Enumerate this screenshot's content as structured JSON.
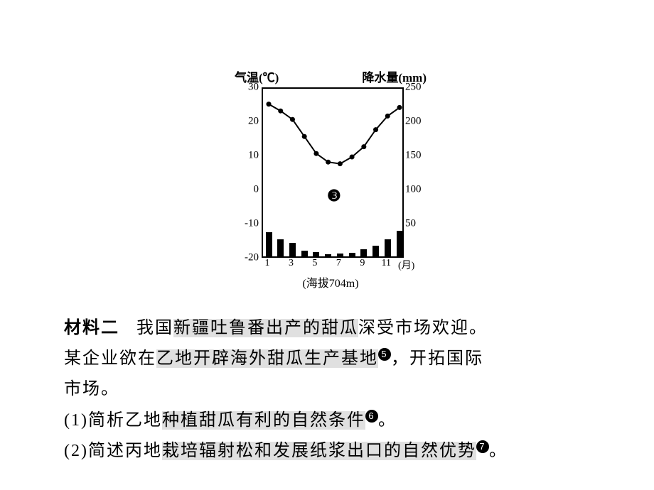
{
  "chart": {
    "title_left": "气温(℃)",
    "title_right": "降水量(mm)",
    "caption": "(海拔704m)",
    "center_mark": "❸",
    "yaxis_left": {
      "min": -20,
      "max": 30,
      "step": 10,
      "ticks": [
        30,
        20,
        10,
        0,
        -10,
        -20
      ]
    },
    "yaxis_right": {
      "min": 0,
      "max": 250,
      "step": 50,
      "ticks": [
        250,
        200,
        150,
        100,
        50
      ]
    },
    "xaxis": {
      "ticks": [
        1,
        3,
        5,
        7,
        9,
        11
      ],
      "unit": "(月)"
    },
    "temp_series": [
      25.5,
      23.5,
      21,
      16,
      11,
      8.5,
      8,
      10,
      13,
      18,
      22,
      24.5
    ],
    "precip_series": [
      35,
      25,
      20,
      8,
      6,
      3,
      4,
      5,
      10,
      16,
      25,
      38
    ],
    "line_color": "#000000",
    "bar_color": "#000000",
    "border_color": "#000000",
    "bg_color": "#ffffff"
  },
  "text": {
    "m2_label": "材料二",
    "l1a": "我国",
    "l1b": "新疆吐鲁番出产的甜瓜",
    "l1c": "深受市场欢迎。",
    "l2a": "某企业欲在",
    "l2b": "乙地开辟海外甜瓜生产基地",
    "sup5": "5",
    "l2c": "，开拓国际",
    "l3": "市场。",
    "q1a": "(1)简析乙地",
    "q1b": "种植甜瓜有利的自然条件",
    "sup6": "6",
    "q1c": "。",
    "q2a": "(2)简述丙地",
    "q2b": "栽培辐射松和发展纸浆出口的自然优势",
    "sup7": "7",
    "q2c": "。"
  }
}
